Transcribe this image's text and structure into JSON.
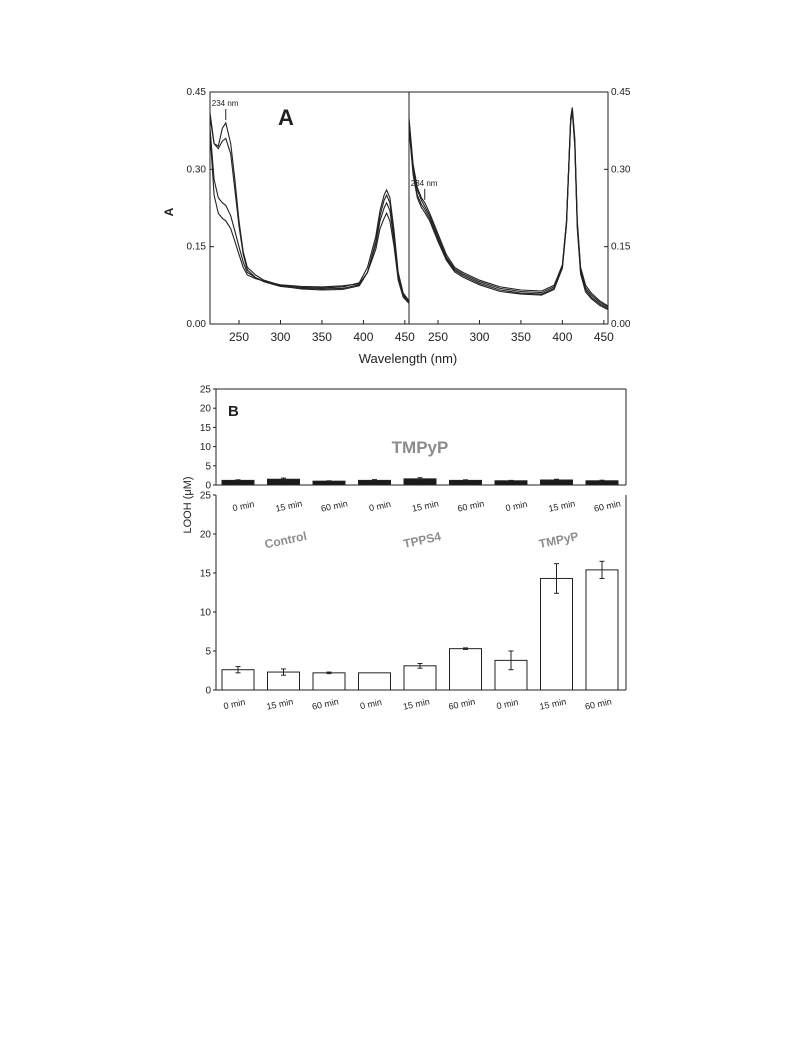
{
  "chart_data": [
    {
      "panel": "A",
      "type": "line",
      "ylabel": "A",
      "xlabel": "Wavelength (nm)",
      "ylim": [
        0,
        0.45
      ],
      "yticks": [
        "0.00",
        "0.15",
        "0.30",
        "0.45"
      ],
      "subplots": [
        {
          "id": "left",
          "xlim": [
            215,
            455
          ],
          "xticks": [
            "250",
            "300",
            "350",
            "400",
            "450"
          ],
          "annotation": "234 nm",
          "annotation_x": 234,
          "series": [
            {
              "x": [
                215,
                220,
                225,
                230,
                234,
                240,
                245,
                250,
                255,
                260,
                270,
                280,
                300,
                325,
                350,
                375,
                395,
                405,
                415,
                420,
                425,
                428,
                432,
                437,
                442,
                448,
                455
              ],
              "y": [
                0.41,
                0.35,
                0.345,
                0.38,
                0.39,
                0.35,
                0.28,
                0.2,
                0.14,
                0.11,
                0.095,
                0.085,
                0.075,
                0.071,
                0.07,
                0.072,
                0.08,
                0.11,
                0.17,
                0.22,
                0.25,
                0.26,
                0.245,
                0.18,
                0.1,
                0.06,
                0.045
              ]
            },
            {
              "x": [
                215,
                220,
                225,
                230,
                234,
                240,
                245,
                250,
                255,
                260,
                270,
                280,
                300,
                325,
                350,
                375,
                395,
                405,
                415,
                420,
                425,
                428,
                432,
                437,
                442,
                448,
                455
              ],
              "y": [
                0.4,
                0.35,
                0.34,
                0.355,
                0.36,
                0.33,
                0.26,
                0.19,
                0.135,
                0.105,
                0.09,
                0.082,
                0.073,
                0.069,
                0.068,
                0.069,
                0.076,
                0.1,
                0.16,
                0.21,
                0.24,
                0.25,
                0.235,
                0.17,
                0.095,
                0.058,
                0.043
              ]
            },
            {
              "x": [
                215,
                220,
                225,
                230,
                234,
                240,
                245,
                250,
                255,
                260,
                270,
                280,
                300,
                325,
                350,
                375,
                395,
                405,
                415,
                420,
                425,
                428,
                432,
                437,
                442,
                448,
                455
              ],
              "y": [
                0.38,
                0.28,
                0.245,
                0.235,
                0.23,
                0.21,
                0.18,
                0.15,
                0.12,
                0.1,
                0.09,
                0.083,
                0.074,
                0.068,
                0.066,
                0.067,
                0.074,
                0.1,
                0.155,
                0.2,
                0.225,
                0.235,
                0.22,
                0.16,
                0.09,
                0.055,
                0.042
              ]
            },
            {
              "x": [
                215,
                220,
                225,
                230,
                234,
                240,
                245,
                250,
                255,
                260,
                270,
                280,
                300,
                325,
                350,
                375,
                395,
                405,
                415,
                420,
                425,
                428,
                432,
                437,
                442,
                448,
                455
              ],
              "y": [
                0.37,
                0.25,
                0.215,
                0.205,
                0.2,
                0.185,
                0.16,
                0.135,
                0.11,
                0.095,
                0.088,
                0.083,
                0.076,
                0.073,
                0.072,
                0.074,
                0.078,
                0.1,
                0.145,
                0.185,
                0.205,
                0.215,
                0.2,
                0.15,
                0.085,
                0.052,
                0.04
              ]
            }
          ]
        },
        {
          "id": "right",
          "xlim": [
            215,
            455
          ],
          "xticks": [
            "250",
            "300",
            "350",
            "400",
            "450"
          ],
          "annotation": "234 nm",
          "annotation_x": 234,
          "series": [
            {
              "x": [
                215,
                220,
                225,
                230,
                234,
                240,
                250,
                260,
                270,
                280,
                300,
                325,
                350,
                375,
                390,
                395,
                400,
                405,
                408,
                410,
                412,
                415,
                418,
                422,
                428,
                435,
                445,
                455
              ],
              "y": [
                0.4,
                0.31,
                0.265,
                0.245,
                0.235,
                0.215,
                0.175,
                0.135,
                0.11,
                0.1,
                0.085,
                0.072,
                0.066,
                0.064,
                0.075,
                0.095,
                0.115,
                0.2,
                0.32,
                0.4,
                0.42,
                0.36,
                0.2,
                0.11,
                0.075,
                0.06,
                0.045,
                0.035
              ]
            },
            {
              "x": [
                215,
                220,
                225,
                230,
                234,
                240,
                250,
                260,
                270,
                280,
                300,
                325,
                350,
                375,
                390,
                395,
                400,
                405,
                408,
                410,
                412,
                415,
                418,
                422,
                428,
                435,
                445,
                455
              ],
              "y": [
                0.39,
                0.3,
                0.26,
                0.24,
                0.228,
                0.21,
                0.17,
                0.13,
                0.107,
                0.097,
                0.082,
                0.069,
                0.063,
                0.061,
                0.072,
                0.093,
                0.113,
                0.198,
                0.318,
                0.398,
                0.418,
                0.355,
                0.195,
                0.105,
                0.07,
                0.056,
                0.042,
                0.033
              ]
            },
            {
              "x": [
                215,
                220,
                225,
                230,
                234,
                240,
                250,
                260,
                270,
                280,
                300,
                325,
                350,
                375,
                390,
                395,
                400,
                405,
                408,
                410,
                412,
                415,
                418,
                422,
                428,
                435,
                445,
                455
              ],
              "y": [
                0.385,
                0.295,
                0.25,
                0.232,
                0.222,
                0.205,
                0.165,
                0.127,
                0.104,
                0.094,
                0.079,
                0.066,
                0.06,
                0.058,
                0.069,
                0.09,
                0.11,
                0.195,
                0.315,
                0.395,
                0.415,
                0.35,
                0.19,
                0.1,
                0.066,
                0.052,
                0.039,
                0.03
              ]
            },
            {
              "x": [
                215,
                220,
                225,
                230,
                234,
                240,
                250,
                260,
                270,
                280,
                300,
                325,
                350,
                375,
                390,
                395,
                400,
                405,
                408,
                410,
                412,
                415,
                418,
                422,
                428,
                435,
                445,
                455
              ],
              "y": [
                0.38,
                0.29,
                0.245,
                0.226,
                0.216,
                0.2,
                0.16,
                0.124,
                0.101,
                0.091,
                0.076,
                0.063,
                0.058,
                0.056,
                0.067,
                0.088,
                0.108,
                0.192,
                0.312,
                0.392,
                0.412,
                0.345,
                0.185,
                0.097,
                0.062,
                0.049,
                0.036,
                0.028
              ]
            }
          ]
        }
      ]
    },
    {
      "panel": "B",
      "type": "bar",
      "ylabel": "LOOH (μM)",
      "subplots": [
        {
          "id": "top",
          "fill": "#1a1a1a",
          "ylim": [
            0,
            25
          ],
          "yticks": [
            "0",
            "5",
            "10",
            "15",
            "20",
            "25"
          ],
          "inner_label": "TMPyP",
          "categories": [
            "0 min",
            "15 min",
            "60 min",
            "0 min",
            "15 min",
            "60 min",
            "0 min",
            "15 min",
            "60 min"
          ],
          "values": [
            1.2,
            1.5,
            1.0,
            1.2,
            1.6,
            1.2,
            1.1,
            1.3,
            1.1
          ],
          "errors": [
            0.15,
            0.3,
            0.1,
            0.2,
            0.3,
            0.15,
            0.1,
            0.2,
            0.15
          ]
        },
        {
          "id": "bottom",
          "fill": "#ffffff",
          "ylim": [
            0,
            25
          ],
          "yticks": [
            "0",
            "5",
            "10",
            "15",
            "20",
            "25"
          ],
          "groups": [
            "Control",
            "TPPS4",
            "TMPyP"
          ],
          "categories": [
            "0 min",
            "15 min",
            "60 min",
            "0 min",
            "15 min",
            "60 min",
            "0 min",
            "15 min",
            "60 min"
          ],
          "values": [
            2.6,
            2.3,
            2.2,
            2.2,
            3.1,
            5.3,
            3.8,
            14.3,
            15.4
          ],
          "errors": [
            0.4,
            0.4,
            0.1,
            0.0,
            0.3,
            0.1,
            1.2,
            1.9,
            1.1
          ]
        }
      ]
    }
  ]
}
